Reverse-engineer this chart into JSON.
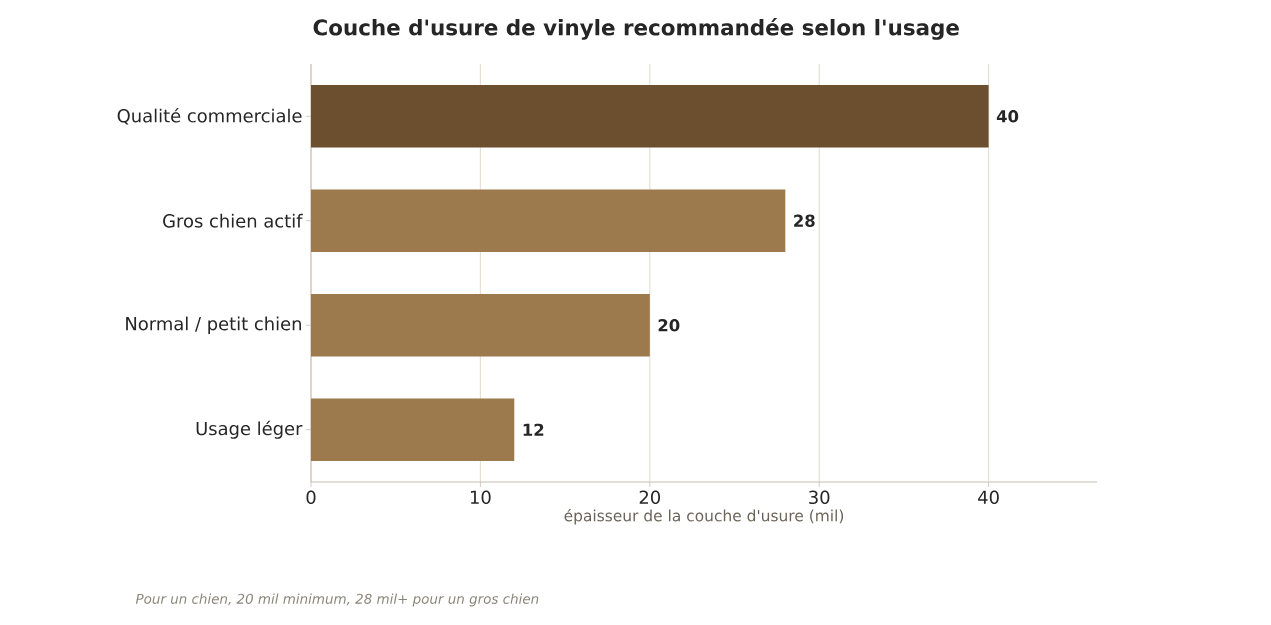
{
  "chart_data": {
    "type": "bar",
    "orientation": "horizontal",
    "title": "Couche d'usure de vinyle recommandée selon l'usage",
    "xlabel": "épaisseur de la couche d'usure (mil)",
    "categories": [
      "Qualité commerciale",
      "Gros chien actif",
      "Normal / petit chien",
      "Usage léger"
    ],
    "values": [
      40,
      28,
      20,
      12
    ],
    "colors": [
      "#6b4f2f",
      "#9c7a4d",
      "#9c7a4d",
      "#9c7a4d"
    ],
    "xlim": [
      0,
      46.4
    ],
    "xticks": [
      0,
      10,
      20,
      30,
      40
    ],
    "grid": "x",
    "data_labels": true,
    "annotations": [
      "Pour un chien, 20 mil minimum, 28 mil+ pour un gros chien"
    ]
  }
}
